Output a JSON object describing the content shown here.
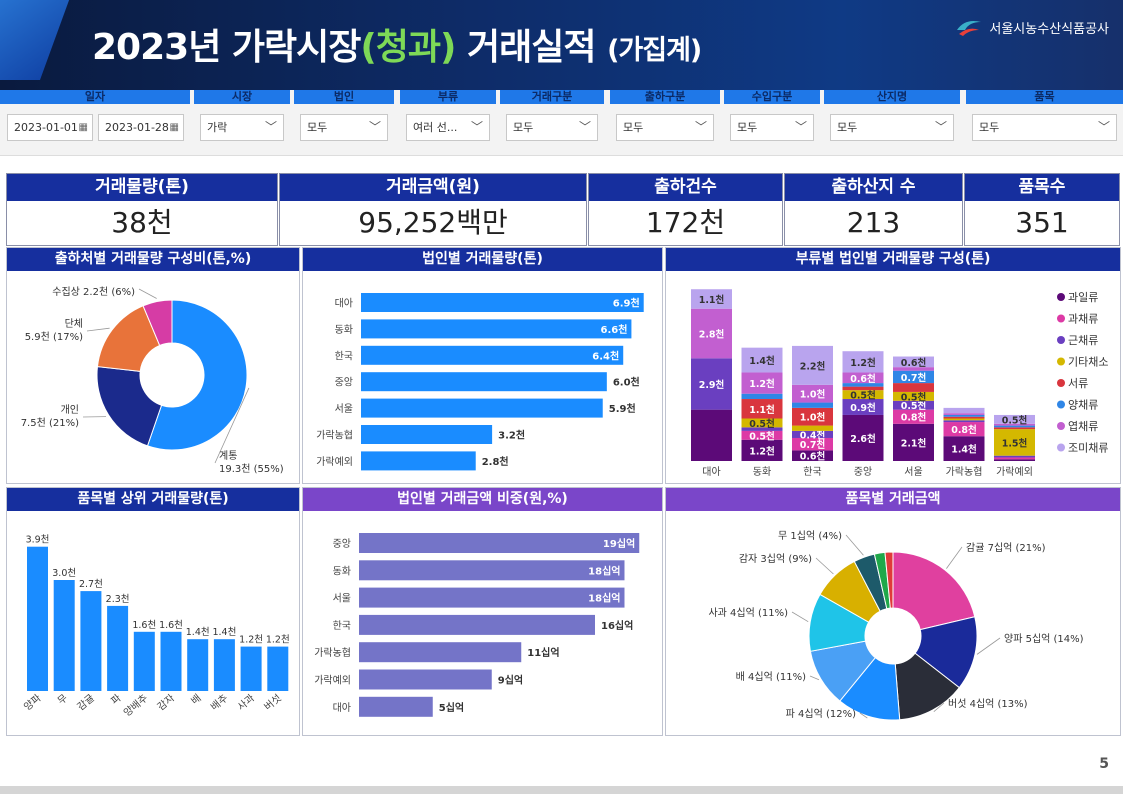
{
  "header": {
    "title_main": "2023년 가락시장",
    "title_paren": "(청과)",
    "title_rest": " 거래실적",
    "title_small": "(가집계)",
    "org_name": "서울시농수산식품공사",
    "page_number": "5"
  },
  "filters": [
    {
      "label": "일자",
      "values": [
        "2023-01-01",
        "2023-01-28"
      ]
    },
    {
      "label": "시장",
      "value": "가락"
    },
    {
      "label": "법인",
      "value": "모두"
    },
    {
      "label": "부류",
      "value": "여러 선..."
    },
    {
      "label": "거래구분",
      "value": "모두"
    },
    {
      "label": "출하구분",
      "value": "모두"
    },
    {
      "label": "수입구분",
      "value": "모두"
    },
    {
      "label": "산지명",
      "value": "모두"
    },
    {
      "label": "품목",
      "value": "모두"
    }
  ],
  "kpis": [
    {
      "label": "거래물량(톤)",
      "value": "38천"
    },
    {
      "label": "거래금액(원)",
      "value": "95,252백만"
    },
    {
      "label": "출하건수",
      "value": "172천"
    },
    {
      "label": "출하산지 수",
      "value": "213"
    },
    {
      "label": "품목수",
      "value": "351"
    }
  ],
  "colors": {
    "bar_blue": "#1a8cff",
    "bar_purple": "#7474c8",
    "title_blue": "#162f9e",
    "title_purple": "#7a46c9"
  },
  "chart_data": [
    {
      "id": "shipper",
      "type": "pie",
      "title": "출하처별 거래물량 구성비(톤,%)",
      "slices": [
        {
          "label": "계통",
          "value": 19.3,
          "text": "19.3천 (55%)",
          "color": "#1a8cff"
        },
        {
          "label": "개인",
          "value": 7.5,
          "text": "7.5천 (21%)",
          "color": "#1b2a8c"
        },
        {
          "label": "단체",
          "value": 5.9,
          "text": "5.9천 (17%)",
          "color": "#e8733a"
        },
        {
          "label": "수집상",
          "value": 2.2,
          "text": "2.2천 (6%)",
          "color": "#d63ca5"
        }
      ]
    },
    {
      "id": "corp_volume",
      "type": "bar",
      "orientation": "horizontal",
      "title": "법인별 거래물량(톤)",
      "categories": [
        "대아",
        "동화",
        "한국",
        "중앙",
        "서울",
        "가락농협",
        "가락예외"
      ],
      "values": [
        6.9,
        6.6,
        6.4,
        6.0,
        5.9,
        3.2,
        2.8
      ],
      "labels": [
        "6.9천",
        "6.6천",
        "6.4천",
        "6.0천",
        "5.9천",
        "3.2천",
        "2.8천"
      ],
      "xlim": [
        0,
        7.2
      ]
    },
    {
      "id": "category_corp",
      "type": "bar",
      "stacked": true,
      "title": "부류별 법인별 거래물량 구성(톤)",
      "categories": [
        "대아",
        "동화",
        "한국",
        "중앙",
        "서울",
        "가락농협",
        "가락예외"
      ],
      "legend": [
        "과일류",
        "과채류",
        "근채류",
        "기타채소",
        "서류",
        "양채류",
        "엽채류",
        "조미채류"
      ],
      "legend_colors": [
        "#5c0a78",
        "#dd3aa5",
        "#6a3fc0",
        "#d4b800",
        "#d9363e",
        "#2f86e6",
        "#c25fd0",
        "#b9a4ee"
      ],
      "series": [
        {
          "name": "과일류",
          "values": [
            2.9,
            1.2,
            0.6,
            2.6,
            2.1,
            1.4,
            0.1
          ],
          "labels": [
            "",
            "1.2천",
            "0.6천",
            "2.6천",
            "2.1천",
            "1.4천",
            ""
          ]
        },
        {
          "name": "과채류",
          "values": [
            0.0,
            0.5,
            0.7,
            0.0,
            0.8,
            0.8,
            0.1
          ],
          "labels": [
            "",
            "0.5천",
            "0.7천",
            "",
            "0.8천",
            "0.8천",
            ""
          ]
        },
        {
          "name": "근채류",
          "values": [
            2.9,
            0.2,
            0.4,
            0.9,
            0.5,
            0.1,
            0.1
          ],
          "labels": [
            "2.9천",
            "",
            "0.4천",
            "0.9천",
            "0.5천",
            "",
            ""
          ]
        },
        {
          "name": "기타채소",
          "values": [
            0.0,
            0.5,
            0.3,
            0.5,
            0.5,
            0.1,
            1.5
          ],
          "labels": [
            "",
            "0.5천",
            "",
            "0.5천",
            "0.5천",
            "",
            "1.5천"
          ]
        },
        {
          "name": "서류",
          "values": [
            0.0,
            1.1,
            1.0,
            0.2,
            0.5,
            0.1,
            0.1
          ],
          "labels": [
            "",
            "1.1천",
            "1.0천",
            "",
            "",
            "",
            ""
          ]
        },
        {
          "name": "양채류",
          "values": [
            0.0,
            0.3,
            0.3,
            0.2,
            0.7,
            0.1,
            0.1
          ],
          "labels": [
            "",
            "",
            "",
            "",
            "0.7천",
            "",
            ""
          ]
        },
        {
          "name": "엽채류",
          "values": [
            2.8,
            1.2,
            1.0,
            0.6,
            0.2,
            0.1,
            0.1
          ],
          "labels": [
            "2.8천",
            "1.2천",
            "1.0천",
            "0.6천",
            "",
            "",
            ""
          ]
        },
        {
          "name": "조미채류",
          "values": [
            1.1,
            1.4,
            2.2,
            1.2,
            0.6,
            0.3,
            0.5
          ],
          "labels": [
            "1.1천",
            "1.4천",
            "2.2천",
            "1.2천",
            "0.6천",
            "",
            "0.5천"
          ]
        }
      ],
      "ylim": [
        0,
        9.6
      ]
    },
    {
      "id": "item_top",
      "type": "bar",
      "title": "품목별 상위 거래물량(톤)",
      "categories": [
        "양파",
        "무",
        "감귤",
        "파",
        "양배추",
        "감자",
        "배",
        "배추",
        "사과",
        "버섯"
      ],
      "values": [
        3.9,
        3.0,
        2.7,
        2.3,
        1.6,
        1.6,
        1.4,
        1.4,
        1.2,
        1.2
      ],
      "labels": [
        "3.9천",
        "3.0천",
        "2.7천",
        "2.3천",
        "1.6천",
        "1.6천",
        "1.4천",
        "1.4천",
        "1.2천",
        "1.2천"
      ],
      "ylim": [
        0,
        4.0
      ]
    },
    {
      "id": "corp_amount",
      "type": "bar",
      "orientation": "horizontal",
      "title": "법인별 거래금액 비중(원,%)",
      "categories": [
        "중앙",
        "동화",
        "서울",
        "한국",
        "가락농협",
        "가락예외",
        "대아"
      ],
      "values": [
        19,
        18,
        18,
        16,
        11,
        9,
        5
      ],
      "labels": [
        "19십억",
        "18십억",
        "18십억",
        "16십억",
        "11십억",
        "9십억",
        "5십억"
      ],
      "xlim": [
        0,
        20
      ]
    },
    {
      "id": "item_amount",
      "type": "pie",
      "title": "품목별 거래금액",
      "slices": [
        {
          "label": "감귤",
          "value": 21,
          "text": "감귤 7십억 (21%)",
          "color": "#e0409f"
        },
        {
          "label": "양파",
          "value": 14,
          "text": "양파 5십억 (14%)",
          "color": "#1a2a9a"
        },
        {
          "label": "버섯",
          "value": 13,
          "text": "버섯 4십억 (13%)",
          "color": "#2a2d38"
        },
        {
          "label": "파",
          "value": 12,
          "text": "파 4십억 (12%)",
          "color": "#1a8cff"
        },
        {
          "label": "배",
          "value": 11,
          "text": "배 4십억 (11%)",
          "color": "#4aa0f5"
        },
        {
          "label": "사과",
          "value": 11,
          "text": "사과 4십억 (11%)",
          "color": "#1fc4e8"
        },
        {
          "label": "감자",
          "value": 9,
          "text": "감자 3십억 (9%)",
          "color": "#d8b000"
        },
        {
          "label": "무",
          "value": 4,
          "text": "무 1십억 (4%)",
          "color": "#1d5a6a"
        },
        {
          "label": "기타1",
          "value": 2,
          "text": "",
          "color": "#1fa84a"
        },
        {
          "label": "기타2",
          "value": 1.5,
          "text": "",
          "color": "#e03a3a"
        }
      ]
    }
  ]
}
